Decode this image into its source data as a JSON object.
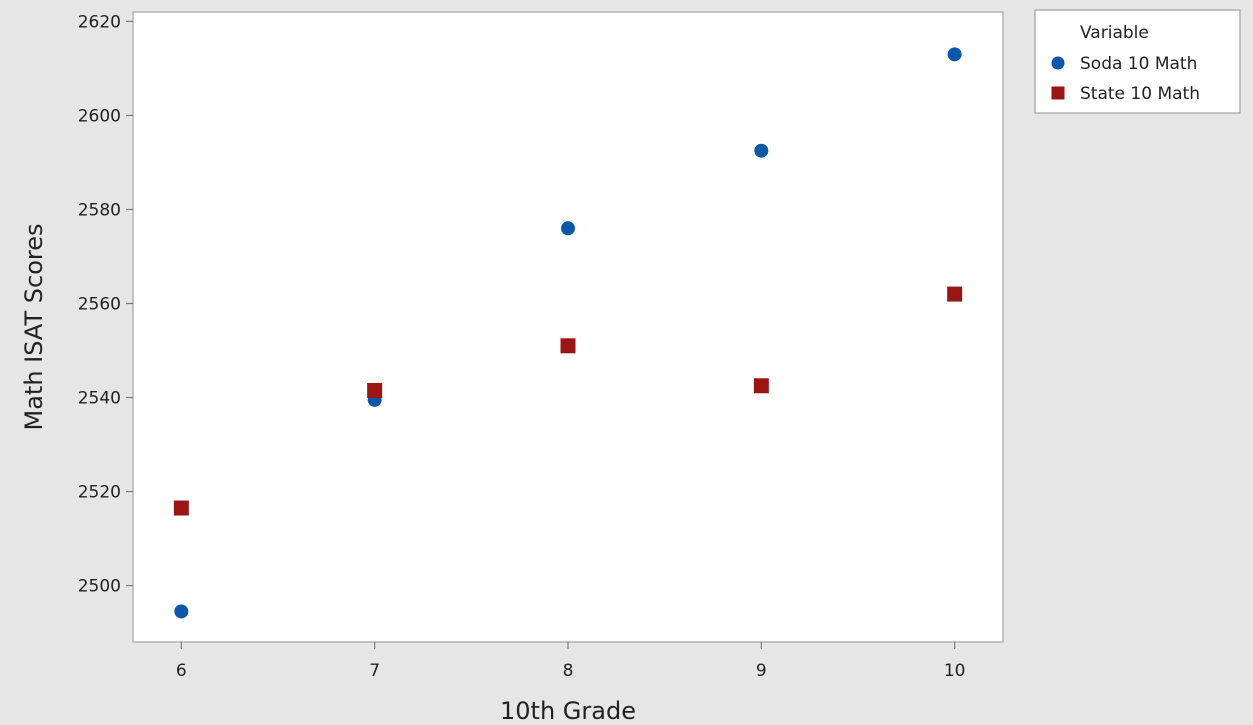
{
  "chart_data": {
    "type": "scatter",
    "title": "",
    "xlabel": "10th Grade",
    "ylabel": "Math ISAT Scores",
    "xlim": [
      5.75,
      10.25
    ],
    "ylim": [
      2488,
      2622
    ],
    "x_ticks": [
      6,
      7,
      8,
      9,
      10
    ],
    "y_ticks": [
      2500,
      2520,
      2540,
      2560,
      2580,
      2600,
      2620
    ],
    "grid": false,
    "legend": {
      "title": "Variable",
      "placement": "right-top",
      "entries": [
        "Soda 10 Math",
        "State 10 Math"
      ]
    },
    "series": [
      {
        "name": "Soda 10 Math",
        "marker": "circle",
        "color": "#0b58a8",
        "points": [
          {
            "x": 6,
            "y": 2494.5
          },
          {
            "x": 7,
            "y": 2539.5
          },
          {
            "x": 8,
            "y": 2576
          },
          {
            "x": 9,
            "y": 2592.5
          },
          {
            "x": 10,
            "y": 2613
          }
        ]
      },
      {
        "name": "State 10 Math",
        "marker": "square",
        "color": "#9b1515",
        "points": [
          {
            "x": 6,
            "y": 2516.5
          },
          {
            "x": 7,
            "y": 2541.5
          },
          {
            "x": 8,
            "y": 2551
          },
          {
            "x": 9,
            "y": 2542.5
          },
          {
            "x": 10,
            "y": 2562
          }
        ]
      }
    ]
  }
}
